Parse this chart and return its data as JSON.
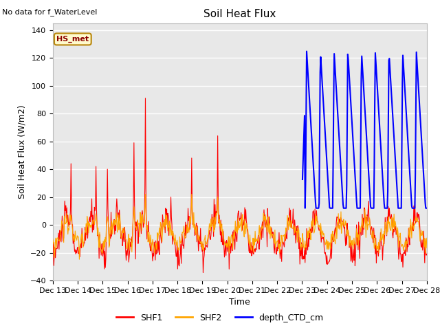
{
  "title": "Soil Heat Flux",
  "ylabel": "Soil Heat Flux (W/m2)",
  "xlabel": "Time",
  "top_left_text": "No data for f_WaterLevel",
  "annotation_box": "HS_met",
  "ylim": [
    -40,
    145
  ],
  "xlim": [
    0,
    15
  ],
  "y_ticks": [
    -40,
    -20,
    0,
    20,
    40,
    60,
    80,
    100,
    120,
    140
  ],
  "x_tick_labels": [
    "Dec 13",
    "Dec 14",
    "Dec 15",
    "Dec 16",
    "Dec 17",
    "Dec 18",
    "Dec 19",
    "Dec 20",
    "Dec 21",
    "Dec 22",
    "Dec 23",
    "Dec 24",
    "Dec 25",
    "Dec 26",
    "Dec 27",
    "Dec 28"
  ],
  "plot_bg_color": "#e8e8e8",
  "shf1_color": "#ff0000",
  "shf2_color": "#ffa500",
  "ctd_color": "#0000ff",
  "legend_labels": [
    "SHF1",
    "SHF2",
    "depth_CTD_cm"
  ],
  "grid_color": "#ffffff",
  "title_fontsize": 11,
  "label_fontsize": 9,
  "tick_fontsize": 8
}
